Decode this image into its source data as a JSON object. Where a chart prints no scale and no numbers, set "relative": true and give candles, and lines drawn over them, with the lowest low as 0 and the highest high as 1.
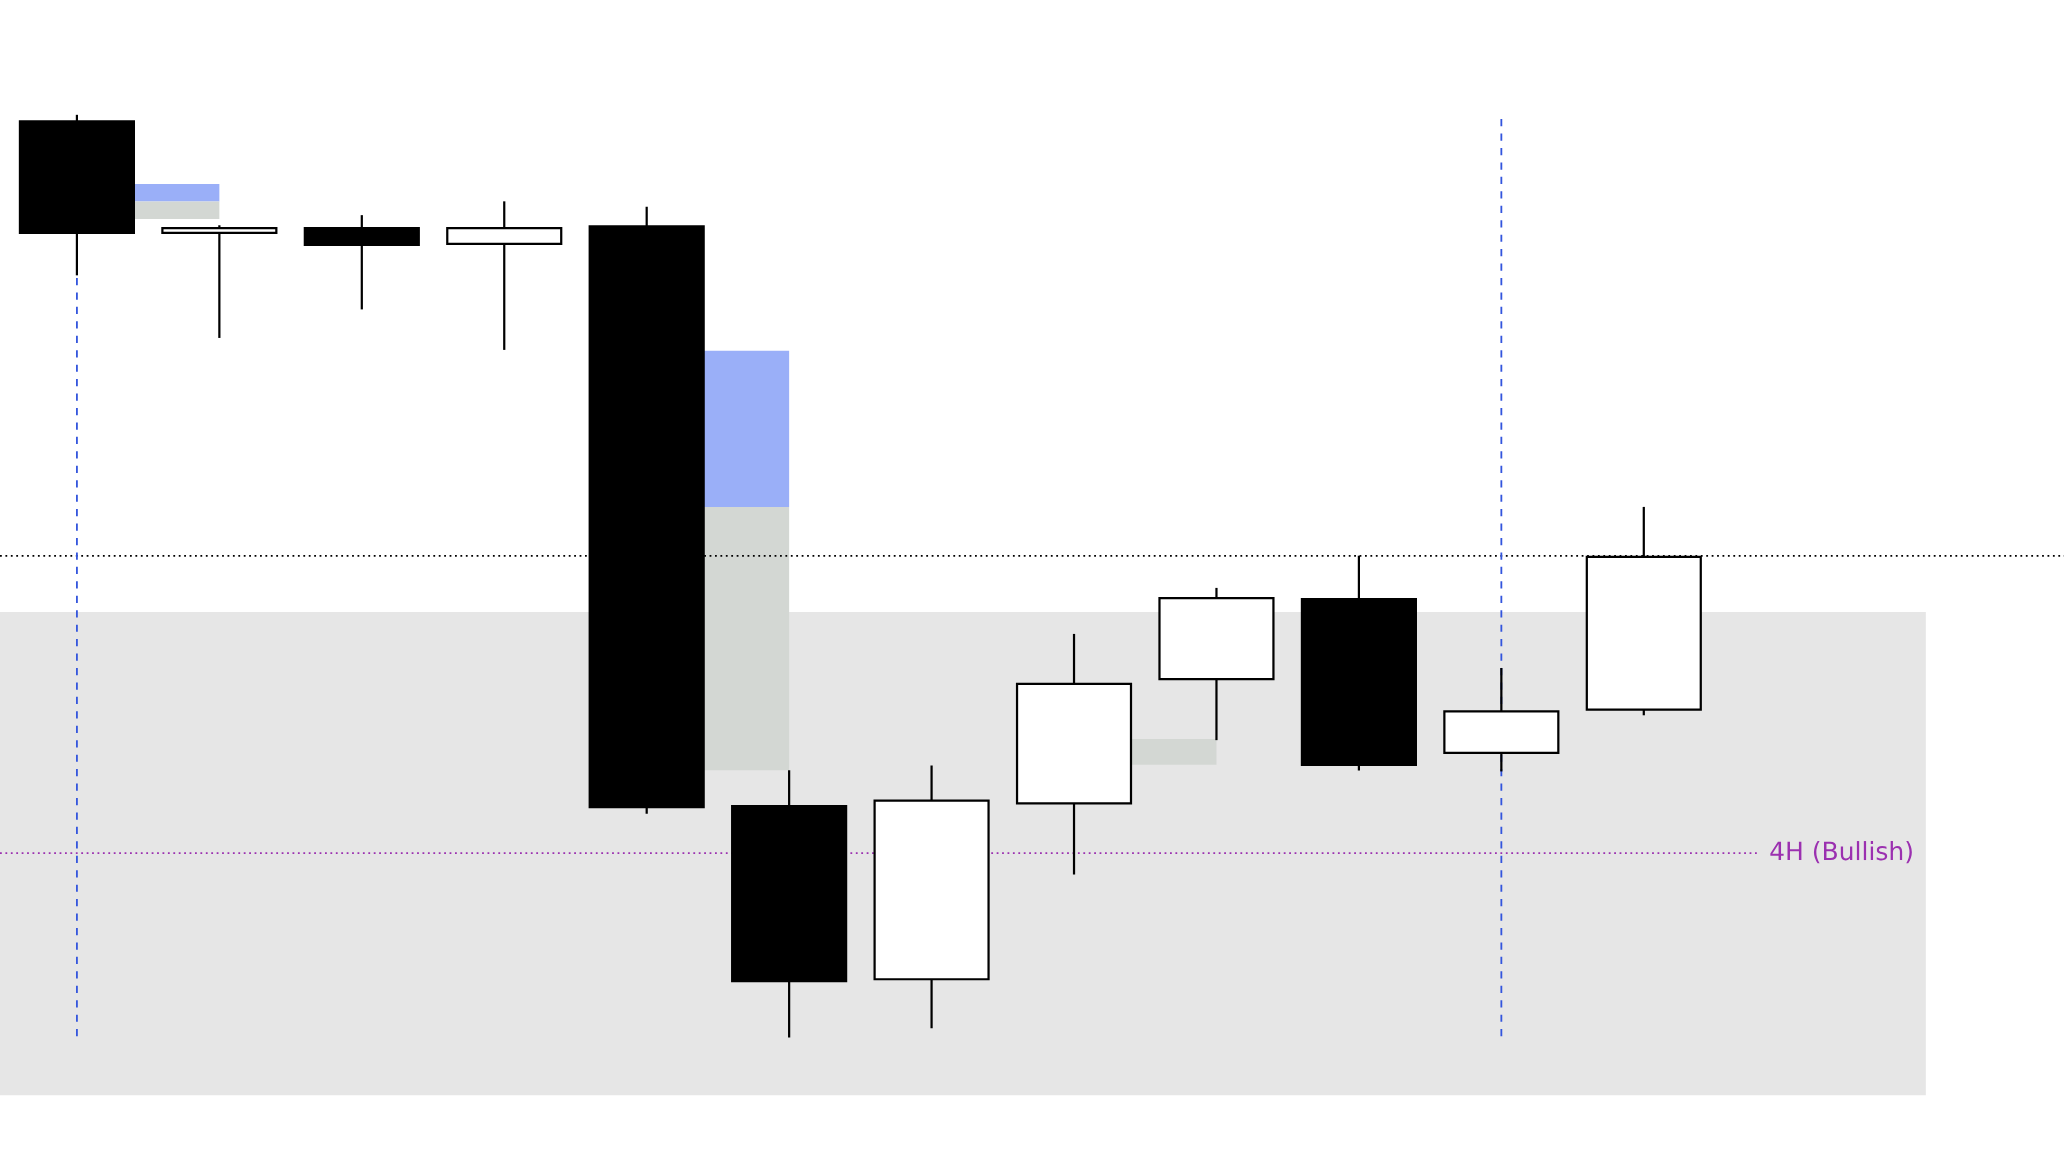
{
  "chart_data": {
    "type": "candlestick",
    "relative": true,
    "categories": [
      null,
      null,
      null,
      null,
      null,
      null,
      null,
      null,
      null,
      null,
      null,
      null
    ],
    "series": [
      {
        "color": "#000000",
        "ohlc": [
          [
            0.994,
            1.0,
            0.828,
            0.873
          ],
          [
            0.873,
            0.88,
            0.76,
            0.878
          ],
          [
            0.878,
            0.891,
            0.791,
            0.86
          ],
          [
            0.861,
            0.906,
            0.747,
            0.878
          ],
          [
            0.88,
            0.9,
            0.243,
            0.249
          ],
          [
            0.25,
            0.288,
            0.0,
            0.06
          ],
          [
            0.062,
            0.293,
            0.01,
            0.256
          ],
          [
            0.253,
            0.436,
            0.177,
            0.383
          ],
          [
            0.388,
            0.486,
            0.323,
            0.476
          ],
          [
            0.475,
            0.521,
            0.29,
            0.295
          ],
          [
            0.308,
            0.399,
            0.289,
            0.353
          ],
          [
            0.355,
            0.574,
            0.35,
            0.521
          ]
        ]
      }
    ],
    "ref_lines": [
      {
        "axis": "y",
        "value": 0.522,
        "label": null,
        "color": "#000000",
        "line_style": "dotted"
      },
      {
        "axis": "y",
        "value": 0.199,
        "label": "4H (Bullish)",
        "color": "#9b30b0",
        "line_style": "dotted"
      }
    ],
    "bands": [
      {
        "axis": "y",
        "from": -0.064,
        "to": 0.461,
        "label": null,
        "color": "#e6e6e6"
      },
      {
        "axis": "y",
        "from": 0.907,
        "to": 0.926,
        "label": null,
        "color": "#9aaff8"
      },
      {
        "axis": "y",
        "from": 0.888,
        "to": 0.907,
        "label": null,
        "color": "#d3d7d3"
      },
      {
        "axis": "y",
        "from": 0.575,
        "to": 0.745,
        "label": null,
        "color": "#9aaff8"
      },
      {
        "axis": "y",
        "from": 0.289,
        "to": 0.575,
        "label": null,
        "color": "#d3d7d3"
      },
      {
        "axis": "y",
        "from": 0.295,
        "to": 0.323,
        "label": null,
        "color": "#d3d7d3"
      }
    ]
  }
}
